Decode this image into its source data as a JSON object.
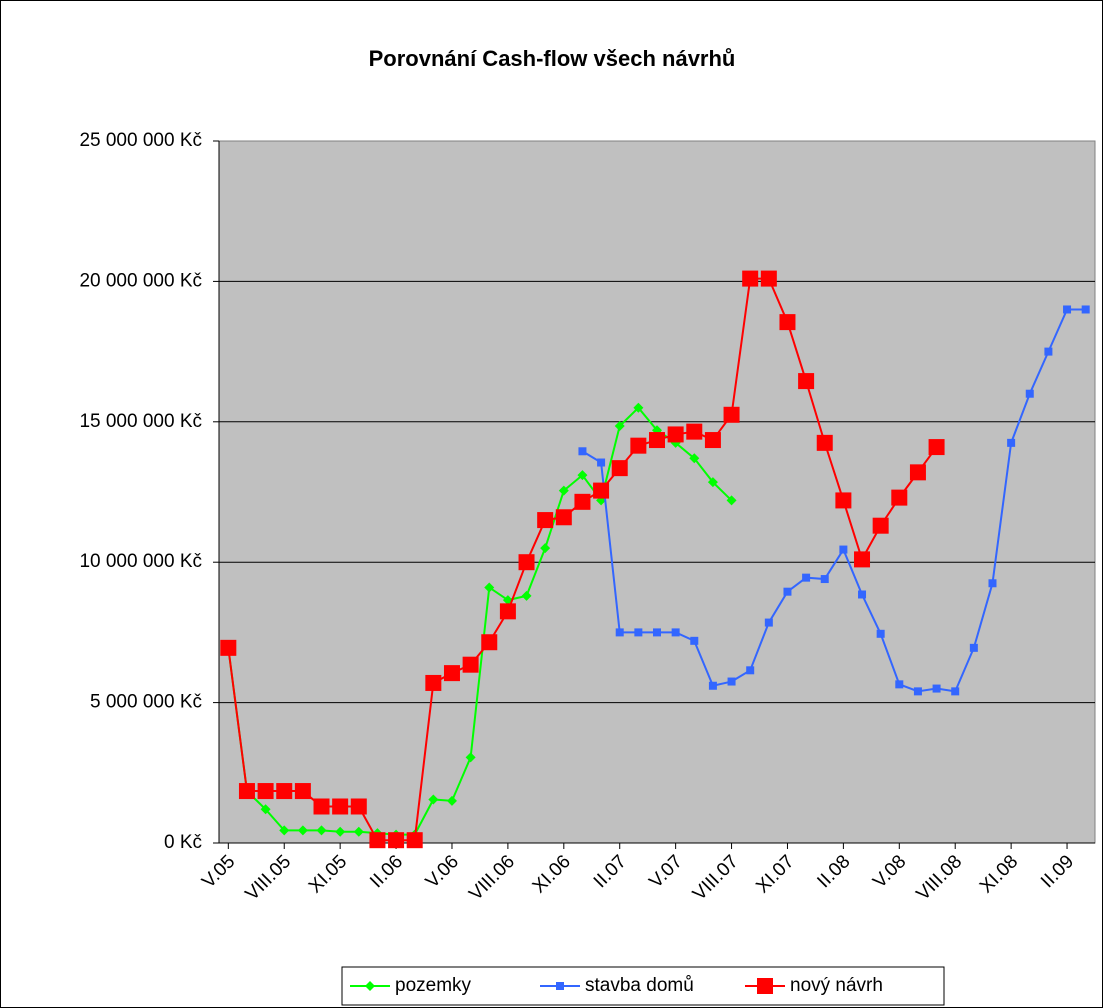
{
  "chart_data": {
    "type": "line",
    "title": "Porovnání Cash-flow všech návrhů",
    "categories": [
      "V.05",
      null,
      null,
      "VIII.05",
      null,
      null,
      "XI.05",
      null,
      null,
      "II.06",
      null,
      null,
      "V.06",
      null,
      null,
      "VIII.06",
      null,
      null,
      "XI.06",
      null,
      null,
      "II.07",
      null,
      null,
      "V.07",
      null,
      null,
      "VIII.07",
      null,
      null,
      "XI.07",
      null,
      null,
      "II.08",
      null,
      null,
      "V.08",
      null,
      null,
      "VIII.08",
      null,
      null,
      "XI.08",
      null,
      null,
      "II.09",
      null
    ],
    "series": [
      {
        "name": "pozemky",
        "color": "#00ff00",
        "marker": "diamond",
        "values": [
          6950000,
          1850000,
          1200000,
          450000,
          450000,
          450000,
          400000,
          400000,
          350000,
          300000,
          300000,
          1550000,
          1500000,
          3050000,
          9100000,
          8650000,
          8800000,
          10500000,
          12550000,
          13100000,
          12200000,
          14850000,
          15500000,
          14700000,
          14250000,
          13700000,
          12850000,
          12200000,
          null,
          null,
          null,
          null,
          null,
          null,
          null,
          null,
          null,
          null,
          null,
          null,
          null,
          null,
          null,
          null,
          null,
          null,
          null
        ]
      },
      {
        "name": "stavba domů",
        "color": "#3366ff",
        "marker": "square",
        "values": [
          null,
          null,
          null,
          null,
          null,
          null,
          null,
          null,
          null,
          null,
          null,
          null,
          null,
          null,
          null,
          null,
          null,
          null,
          null,
          13950000,
          13550000,
          7500000,
          7500000,
          7500000,
          7500000,
          7200000,
          5600000,
          5750000,
          6150000,
          7850000,
          8950000,
          9450000,
          9400000,
          10450000,
          8850000,
          7450000,
          5650000,
          5400000,
          5500000,
          5400000,
          6950000,
          9250000,
          14250000,
          16000000,
          17500000,
          19000000,
          19000000
        ]
      },
      {
        "name": "nový návrh",
        "color": "#ff0000",
        "marker": "bigsquare",
        "values": [
          6950000,
          1850000,
          1850000,
          1850000,
          1850000,
          1300000,
          1300000,
          1300000,
          100000,
          100000,
          100000,
          5700000,
          6050000,
          6350000,
          7150000,
          8250000,
          10000000,
          11500000,
          11600000,
          12150000,
          12550000,
          13350000,
          14150000,
          14350000,
          14550000,
          14650000,
          14350000,
          15250000,
          20100000,
          20100000,
          18550000,
          16450000,
          14250000,
          12200000,
          10100000,
          11300000,
          12300000,
          13200000,
          14100000,
          null,
          null,
          null,
          null,
          null,
          null,
          null,
          null
        ]
      }
    ],
    "ylim": [
      0,
      25000000
    ],
    "yticks": [
      {
        "value": 0,
        "label": "0 Kč"
      },
      {
        "value": 5000000,
        "label": "5 000 000 Kč"
      },
      {
        "value": 10000000,
        "label": "10 000 000 Kč"
      },
      {
        "value": 15000000,
        "label": "15 000 000 Kč"
      },
      {
        "value": 20000000,
        "label": "20 000 000 Kč"
      },
      {
        "value": 25000000,
        "label": "25 000 000 Kč"
      }
    ],
    "grid": true,
    "legend": "bottom"
  }
}
